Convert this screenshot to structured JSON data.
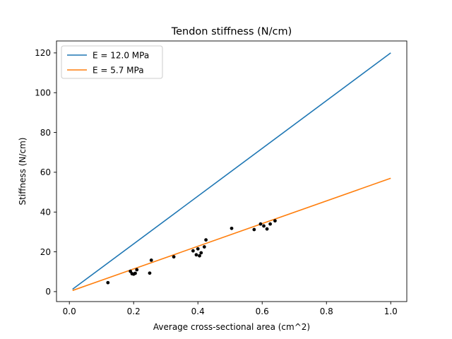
{
  "chart_data": {
    "type": "line",
    "title": "Tendon stiffness (N/cm)",
    "xlabel": "Average cross-sectional area (cm^2)",
    "ylabel": "Stiffness (N/cm)",
    "xlim": [
      -0.04,
      1.05
    ],
    "ylim": [
      -5,
      126
    ],
    "xticks": [
      0.0,
      0.2,
      0.4,
      0.6,
      0.8,
      1.0
    ],
    "xtick_labels": [
      "0.0",
      "0.2",
      "0.4",
      "0.6",
      "0.8",
      "1.0"
    ],
    "yticks": [
      0,
      20,
      40,
      60,
      80,
      100,
      120
    ],
    "ytick_labels": [
      "0",
      "20",
      "40",
      "60",
      "80",
      "100",
      "120"
    ],
    "grid": false,
    "legend_position": "top-left",
    "series": [
      {
        "name": "E = 12.0 MPa",
        "kind": "line",
        "color": "#1f77b4",
        "x": [
          0.01,
          1.0
        ],
        "y": [
          1.2,
          120
        ]
      },
      {
        "name": "E = 5.7 MPa",
        "kind": "line",
        "color": "#ff7f0e",
        "x": [
          0.01,
          1.0
        ],
        "y": [
          0.57,
          57
        ]
      }
    ],
    "scatter": {
      "color": "#000000",
      "x": [
        0.12,
        0.19,
        0.195,
        0.2,
        0.205,
        0.21,
        0.25,
        0.255,
        0.325,
        0.385,
        0.395,
        0.4,
        0.405,
        0.41,
        0.42,
        0.425,
        0.505,
        0.575,
        0.595,
        0.605,
        0.615,
        0.625,
        0.64
      ],
      "y": [
        4.5,
        10.2,
        9.0,
        8.8,
        9.2,
        11.0,
        9.3,
        15.8,
        17.5,
        20.5,
        18.5,
        21.5,
        18.0,
        19.5,
        22.5,
        26.0,
        31.8,
        31.2,
        34.0,
        33.0,
        31.5,
        34.0,
        35.6
      ]
    }
  }
}
